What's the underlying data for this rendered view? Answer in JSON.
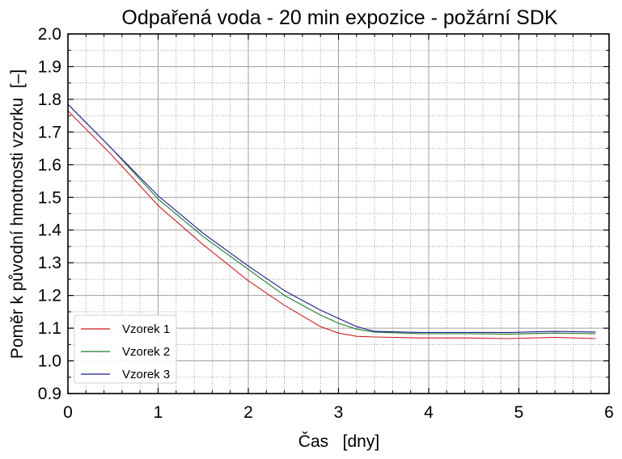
{
  "chart_data": {
    "type": "line",
    "title": "Odpařená voda - 20 min expozice - požární SDK",
    "xlabel": "Čas   [dny]",
    "ylabel": "Poměr k původní hmotnosti vzorku  [–]",
    "xlim": [
      0,
      6
    ],
    "ylim": [
      0.9,
      2.0
    ],
    "xticks": [
      "0",
      "1",
      "2",
      "3",
      "4",
      "5",
      "6"
    ],
    "yticks": [
      "0.9",
      "1.0",
      "1.1",
      "1.2",
      "1.3",
      "1.4",
      "1.5",
      "1.6",
      "1.7",
      "1.8",
      "1.9",
      "2.0"
    ],
    "grid": "major solid, minor dotted",
    "legend_position": "lower-left",
    "x": [
      0,
      0.5,
      1.0,
      1.5,
      2.0,
      2.4,
      2.8,
      3.0,
      3.2,
      3.4,
      3.9,
      4.4,
      4.9,
      5.4,
      5.85
    ],
    "series": [
      {
        "name": "Vzorek 1",
        "color": "#cc1f1f",
        "values": [
          1.765,
          1.625,
          1.475,
          1.355,
          1.245,
          1.17,
          1.105,
          1.085,
          1.075,
          1.073,
          1.07,
          1.07,
          1.068,
          1.072,
          1.068
        ]
      },
      {
        "name": "Vzorek 2",
        "color": "#1f7a2a",
        "values": [
          1.785,
          1.645,
          1.495,
          1.38,
          1.28,
          1.2,
          1.14,
          1.115,
          1.097,
          1.088,
          1.083,
          1.083,
          1.082,
          1.085,
          1.083
        ]
      },
      {
        "name": "Vzorek 3",
        "color": "#1a1a8c",
        "values": [
          1.785,
          1.645,
          1.505,
          1.39,
          1.29,
          1.215,
          1.155,
          1.13,
          1.105,
          1.09,
          1.087,
          1.087,
          1.087,
          1.09,
          1.088
        ]
      }
    ]
  }
}
